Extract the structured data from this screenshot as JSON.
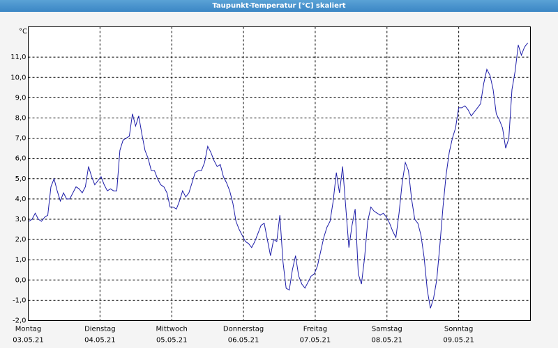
{
  "window_title": "Taupunkt-Temperatur [°C] skaliert",
  "chart_data": {
    "type": "line",
    "y_unit": "°C",
    "color": "#1c1ca8",
    "grid": true,
    "xlim": [
      0,
      7
    ],
    "xticks": [
      0,
      1,
      2,
      3,
      4,
      5,
      6,
      7
    ],
    "x_labels": [
      {
        "day": "Montag",
        "date": "03.05.21"
      },
      {
        "day": "Dienstag",
        "date": "04.05.21"
      },
      {
        "day": "Mittwoch",
        "date": "05.05.21"
      },
      {
        "day": "Donnerstag",
        "date": "06.05.21"
      },
      {
        "day": "Freitag",
        "date": "07.05.21"
      },
      {
        "day": "Samstag",
        "date": "08.05.21"
      },
      {
        "day": "Sonntag",
        "date": "09.05.21"
      }
    ],
    "ylim": [
      -2,
      12.5
    ],
    "yticks": [
      {
        "value": -2,
        "label": "-2,0"
      },
      {
        "value": -1,
        "label": "-1,0"
      },
      {
        "value": 0,
        "label": "0,0"
      },
      {
        "value": 1,
        "label": "1,0"
      },
      {
        "value": 2,
        "label": "2,0"
      },
      {
        "value": 3,
        "label": "3,0"
      },
      {
        "value": 4,
        "label": "4,0"
      },
      {
        "value": 5,
        "label": "5,0"
      },
      {
        "value": 6,
        "label": "6,0"
      },
      {
        "value": 7,
        "label": "7,0"
      },
      {
        "value": 8,
        "label": "8,0"
      },
      {
        "value": 9,
        "label": "9,0"
      },
      {
        "value": 10,
        "label": "10,0"
      },
      {
        "value": 11,
        "label": "11,0"
      }
    ],
    "values": [
      2.9,
      3.0,
      3.3,
      3.0,
      2.9,
      3.1,
      3.2,
      4.6,
      5.0,
      4.4,
      3.9,
      4.3,
      4.0,
      4.0,
      4.3,
      4.6,
      4.5,
      4.3,
      4.6,
      5.6,
      5.1,
      4.7,
      4.9,
      5.1,
      4.7,
      4.4,
      4.5,
      4.4,
      4.4,
      6.4,
      6.9,
      7.0,
      7.1,
      8.2,
      7.6,
      8.1,
      7.2,
      6.4,
      6.0,
      5.4,
      5.4,
      5.0,
      4.7,
      4.6,
      4.3,
      3.6,
      3.6,
      3.5,
      3.9,
      4.4,
      4.1,
      4.3,
      4.8,
      5.3,
      5.4,
      5.4,
      5.8,
      6.6,
      6.3,
      5.9,
      5.6,
      5.7,
      5.1,
      4.8,
      4.4,
      3.8,
      2.9,
      2.5,
      2.2,
      1.9,
      1.8,
      1.6,
      1.9,
      2.3,
      2.7,
      2.8,
      2.0,
      1.2,
      2.0,
      1.9,
      3.2,
      0.9,
      -0.4,
      -0.5,
      0.5,
      1.2,
      0.2,
      -0.2,
      -0.4,
      -0.1,
      0.2,
      0.3,
      0.7,
      1.4,
      2.1,
      2.6,
      2.9,
      3.9,
      5.3,
      4.3,
      5.6,
      3.6,
      1.6,
      2.7,
      3.5,
      0.3,
      -0.2,
      1.1,
      2.9,
      3.6,
      3.4,
      3.3,
      3.2,
      3.3,
      3.1,
      2.8,
      2.4,
      2.1,
      3.3,
      4.8,
      5.8,
      5.4,
      4.0,
      3.0,
      2.8,
      2.2,
      1.1,
      -0.5,
      -1.4,
      -0.9,
      0.0,
      1.7,
      3.6,
      5.2,
      6.3,
      7.0,
      7.5,
      8.5,
      8.5,
      8.6,
      8.4,
      8.1,
      8.3,
      8.5,
      8.7,
      9.7,
      10.4,
      10.1,
      9.4,
      8.2,
      7.9,
      7.5,
      6.5,
      7.0,
      9.4,
      10.3,
      11.6,
      11.1,
      11.5,
      11.7
    ]
  }
}
